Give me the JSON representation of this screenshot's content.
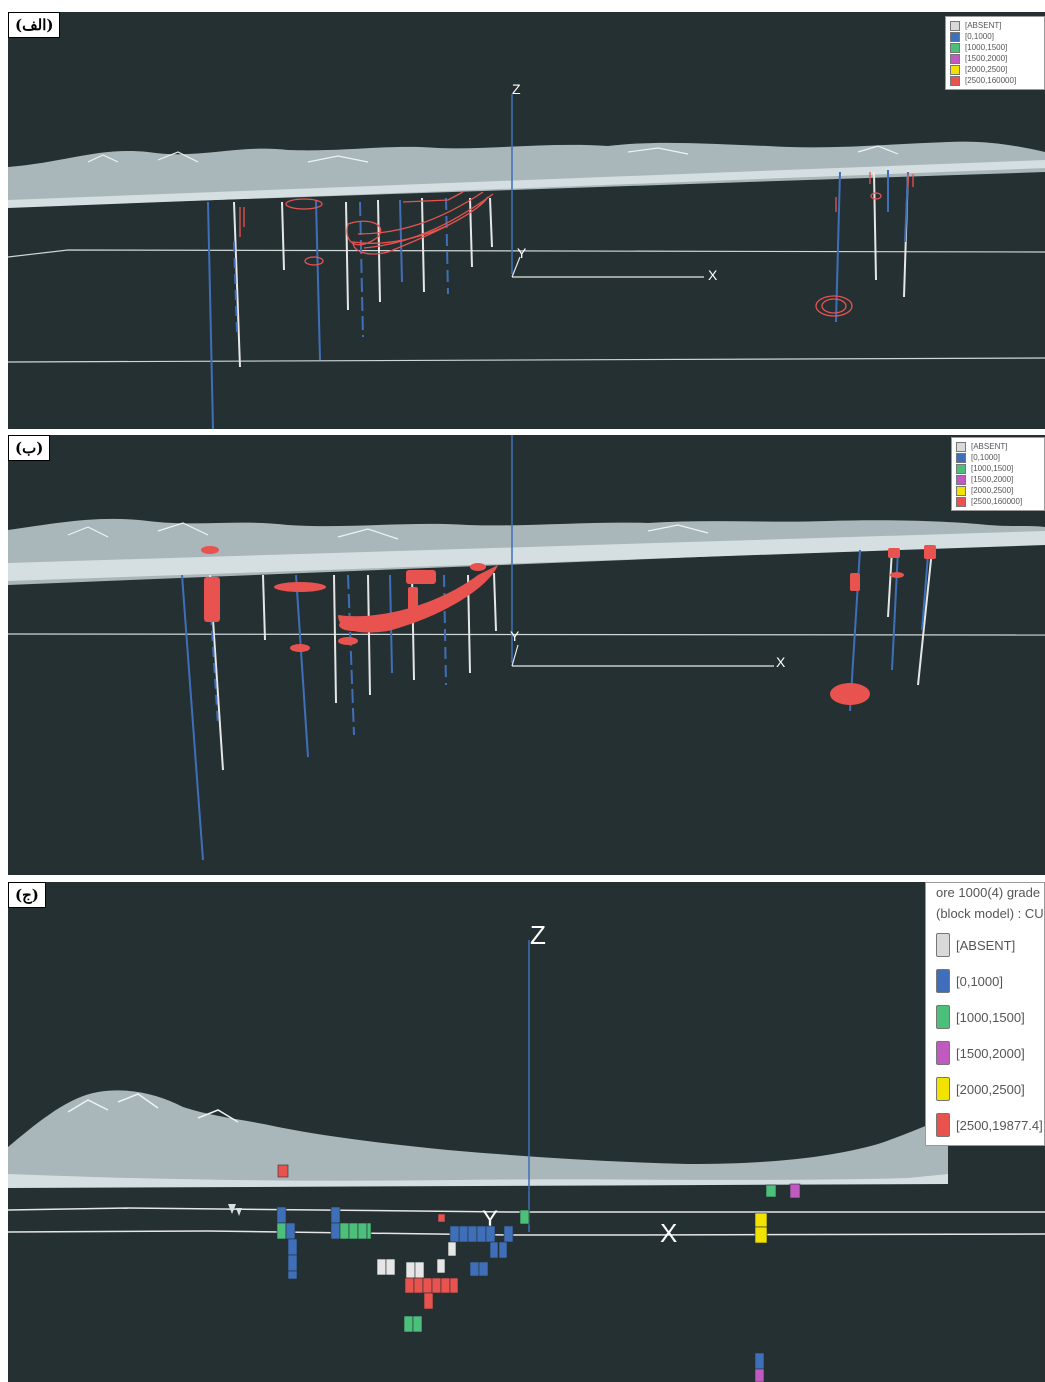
{
  "panels": [
    {
      "tag": "(الف)",
      "axes": {
        "z": "Z",
        "y": "Y",
        "x": "X"
      }
    },
    {
      "tag": "(ب)",
      "axes": {
        "y": "Y",
        "x": "X"
      }
    },
    {
      "tag": "(ج)",
      "axes": {
        "z": "Z",
        "y": "Y",
        "x": "X"
      }
    }
  ],
  "legend_a": {
    "items": [
      {
        "label": "[ABSENT]",
        "color": "#d9d9d9"
      },
      {
        "label": "[0,1000]",
        "color": "#3f6fb8"
      },
      {
        "label": "[1000,1500]",
        "color": "#4cbf7a"
      },
      {
        "label": "[1500,2000]",
        "color": "#c05ac0"
      },
      {
        "label": "[2000,2500]",
        "color": "#f2e200"
      },
      {
        "label": "[2500,160000]",
        "color": "#e8534f"
      }
    ]
  },
  "legend_b": {
    "items": [
      {
        "label": "[ABSENT]",
        "color": "#d9d9d9"
      },
      {
        "label": "[0,1000]",
        "color": "#3f6fb8"
      },
      {
        "label": "[1000,1500]",
        "color": "#4cbf7a"
      },
      {
        "label": "[1500,2000]",
        "color": "#c05ac0"
      },
      {
        "label": "[2000,2500]",
        "color": "#f2e200"
      },
      {
        "label": "[2500,160000]",
        "color": "#e8534f"
      }
    ]
  },
  "legend_c": {
    "header_line1": "ore 1000(4) grade",
    "header_line2": "(block model) : CU",
    "items": [
      {
        "label": "[ABSENT]",
        "color": "#d9d9d9"
      },
      {
        "label": "[0,1000]",
        "color": "#3f6fb8"
      },
      {
        "label": "[1000,1500]",
        "color": "#4cbf7a"
      },
      {
        "label": "[1500,2000]",
        "color": "#c05ac0"
      },
      {
        "label": "[2000,2500]",
        "color": "#f2e200"
      },
      {
        "label": "[2500,19877.4]",
        "color": "#e8534f"
      }
    ]
  },
  "colors": {
    "background": "#253033",
    "surface": "#a9b6ba",
    "surface_light": "#d5dfe2",
    "drill_blue": "#3f6fb8",
    "drill_white": "#e6e6e6",
    "ore_red": "#e8534f"
  }
}
